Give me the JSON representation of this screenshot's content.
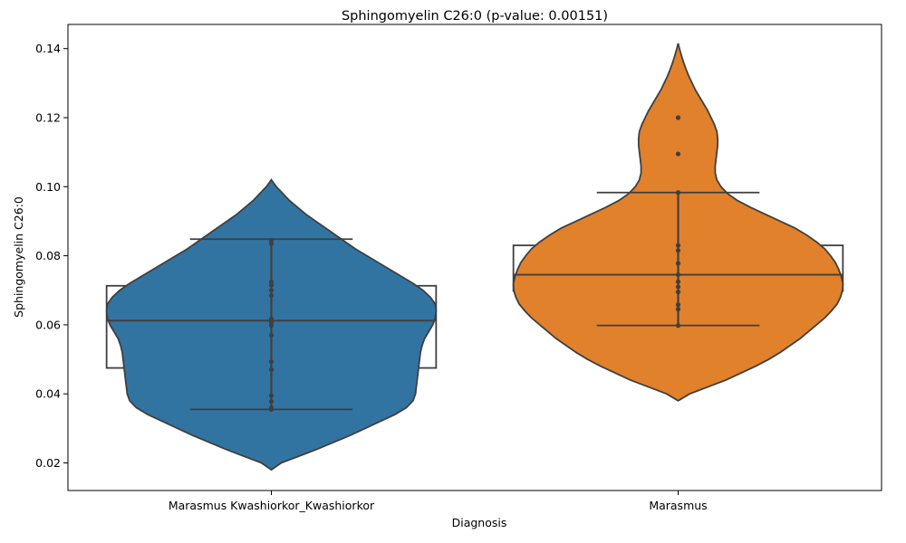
{
  "chart_data": {
    "type": "violin",
    "title": "Sphingomyelin C26:0 (p-value: 0.00151)",
    "xlabel": "Diagnosis",
    "ylabel": "Sphingomyelin C26:0",
    "ylim": [
      0.012,
      0.147
    ],
    "yticks": [
      0.02,
      0.04,
      0.06,
      0.08,
      0.1,
      0.12,
      0.14
    ],
    "ytick_labels": [
      "0.02",
      "0.04",
      "0.06",
      "0.08",
      "0.10",
      "0.12",
      "0.14"
    ],
    "grid": false,
    "categories": [
      "Marasmus Kwashiorkor_Kwashiorkor",
      "Marasmus"
    ],
    "series": [
      {
        "category": "Marasmus Kwashiorkor_Kwashiorkor",
        "color": "#3274a1",
        "violin_range": [
          0.018,
          0.102
        ],
        "box": {
          "q1": 0.0475,
          "median": 0.0612,
          "q3": 0.0713,
          "whisker_low": 0.0355,
          "whisker_high": 0.0848
        },
        "points": [
          0.0355,
          0.036,
          0.0378,
          0.0395,
          0.047,
          0.0493,
          0.057,
          0.0598,
          0.0608,
          0.0617,
          0.0685,
          0.07,
          0.0715,
          0.0724,
          0.0835,
          0.0845
        ],
        "density": [
          [
            0.018,
            0
          ],
          [
            0.02,
            0.06
          ],
          [
            0.022,
            0.17
          ],
          [
            0.024,
            0.28
          ],
          [
            0.026,
            0.38
          ],
          [
            0.028,
            0.48
          ],
          [
            0.03,
            0.57
          ],
          [
            0.032,
            0.66
          ],
          [
            0.034,
            0.75
          ],
          [
            0.036,
            0.82
          ],
          [
            0.038,
            0.86
          ],
          [
            0.04,
            0.875
          ],
          [
            0.042,
            0.88
          ],
          [
            0.044,
            0.885
          ],
          [
            0.046,
            0.89
          ],
          [
            0.048,
            0.895
          ],
          [
            0.05,
            0.9
          ],
          [
            0.052,
            0.905
          ],
          [
            0.054,
            0.915
          ],
          [
            0.056,
            0.93
          ],
          [
            0.058,
            0.955
          ],
          [
            0.06,
            0.98
          ],
          [
            0.062,
            0.995
          ],
          [
            0.064,
            1.0
          ],
          [
            0.066,
            0.995
          ],
          [
            0.068,
            0.965
          ],
          [
            0.07,
            0.92
          ],
          [
            0.072,
            0.86
          ],
          [
            0.074,
            0.79
          ],
          [
            0.076,
            0.72
          ],
          [
            0.078,
            0.65
          ],
          [
            0.08,
            0.58
          ],
          [
            0.082,
            0.51
          ],
          [
            0.084,
            0.45
          ],
          [
            0.086,
            0.39
          ],
          [
            0.088,
            0.33
          ],
          [
            0.09,
            0.27
          ],
          [
            0.092,
            0.21
          ],
          [
            0.094,
            0.16
          ],
          [
            0.096,
            0.11
          ],
          [
            0.098,
            0.07
          ],
          [
            0.1,
            0.03
          ],
          [
            0.102,
            0
          ]
        ]
      },
      {
        "category": "Marasmus",
        "color": "#e1812c",
        "violin_range": [
          0.038,
          0.1415
        ],
        "box": {
          "q1": 0.0698,
          "median": 0.0745,
          "q3": 0.083,
          "whisker_low": 0.0598,
          "whisker_high": 0.0983
        },
        "points": [
          0.0598,
          0.0645,
          0.0658,
          0.0695,
          0.071,
          0.0725,
          0.0745,
          0.0778,
          0.0815,
          0.083,
          0.0983,
          0.1095,
          0.12
        ],
        "density": [
          [
            0.038,
            0
          ],
          [
            0.04,
            0.07
          ],
          [
            0.042,
            0.18
          ],
          [
            0.044,
            0.29
          ],
          [
            0.046,
            0.38
          ],
          [
            0.048,
            0.47
          ],
          [
            0.05,
            0.55
          ],
          [
            0.052,
            0.62
          ],
          [
            0.054,
            0.68
          ],
          [
            0.056,
            0.74
          ],
          [
            0.058,
            0.79
          ],
          [
            0.06,
            0.84
          ],
          [
            0.062,
            0.89
          ],
          [
            0.064,
            0.93
          ],
          [
            0.066,
            0.965
          ],
          [
            0.068,
            0.985
          ],
          [
            0.07,
            0.998
          ],
          [
            0.072,
            1.0
          ],
          [
            0.074,
            0.99
          ],
          [
            0.076,
            0.975
          ],
          [
            0.078,
            0.955
          ],
          [
            0.08,
            0.925
          ],
          [
            0.082,
            0.89
          ],
          [
            0.084,
            0.84
          ],
          [
            0.086,
            0.78
          ],
          [
            0.088,
            0.71
          ],
          [
            0.09,
            0.62
          ],
          [
            0.092,
            0.53
          ],
          [
            0.094,
            0.44
          ],
          [
            0.096,
            0.36
          ],
          [
            0.098,
            0.3
          ],
          [
            0.1,
            0.26
          ],
          [
            0.102,
            0.235
          ],
          [
            0.104,
            0.225
          ],
          [
            0.106,
            0.225
          ],
          [
            0.108,
            0.23
          ],
          [
            0.11,
            0.235
          ],
          [
            0.112,
            0.24
          ],
          [
            0.114,
            0.24
          ],
          [
            0.116,
            0.235
          ],
          [
            0.118,
            0.22
          ],
          [
            0.12,
            0.2
          ],
          [
            0.122,
            0.18
          ],
          [
            0.124,
            0.155
          ],
          [
            0.126,
            0.13
          ],
          [
            0.128,
            0.105
          ],
          [
            0.13,
            0.085
          ],
          [
            0.132,
            0.065
          ],
          [
            0.134,
            0.048
          ],
          [
            0.136,
            0.033
          ],
          [
            0.138,
            0.02
          ],
          [
            0.14,
            0.008
          ],
          [
            0.1415,
            0
          ]
        ]
      }
    ]
  }
}
